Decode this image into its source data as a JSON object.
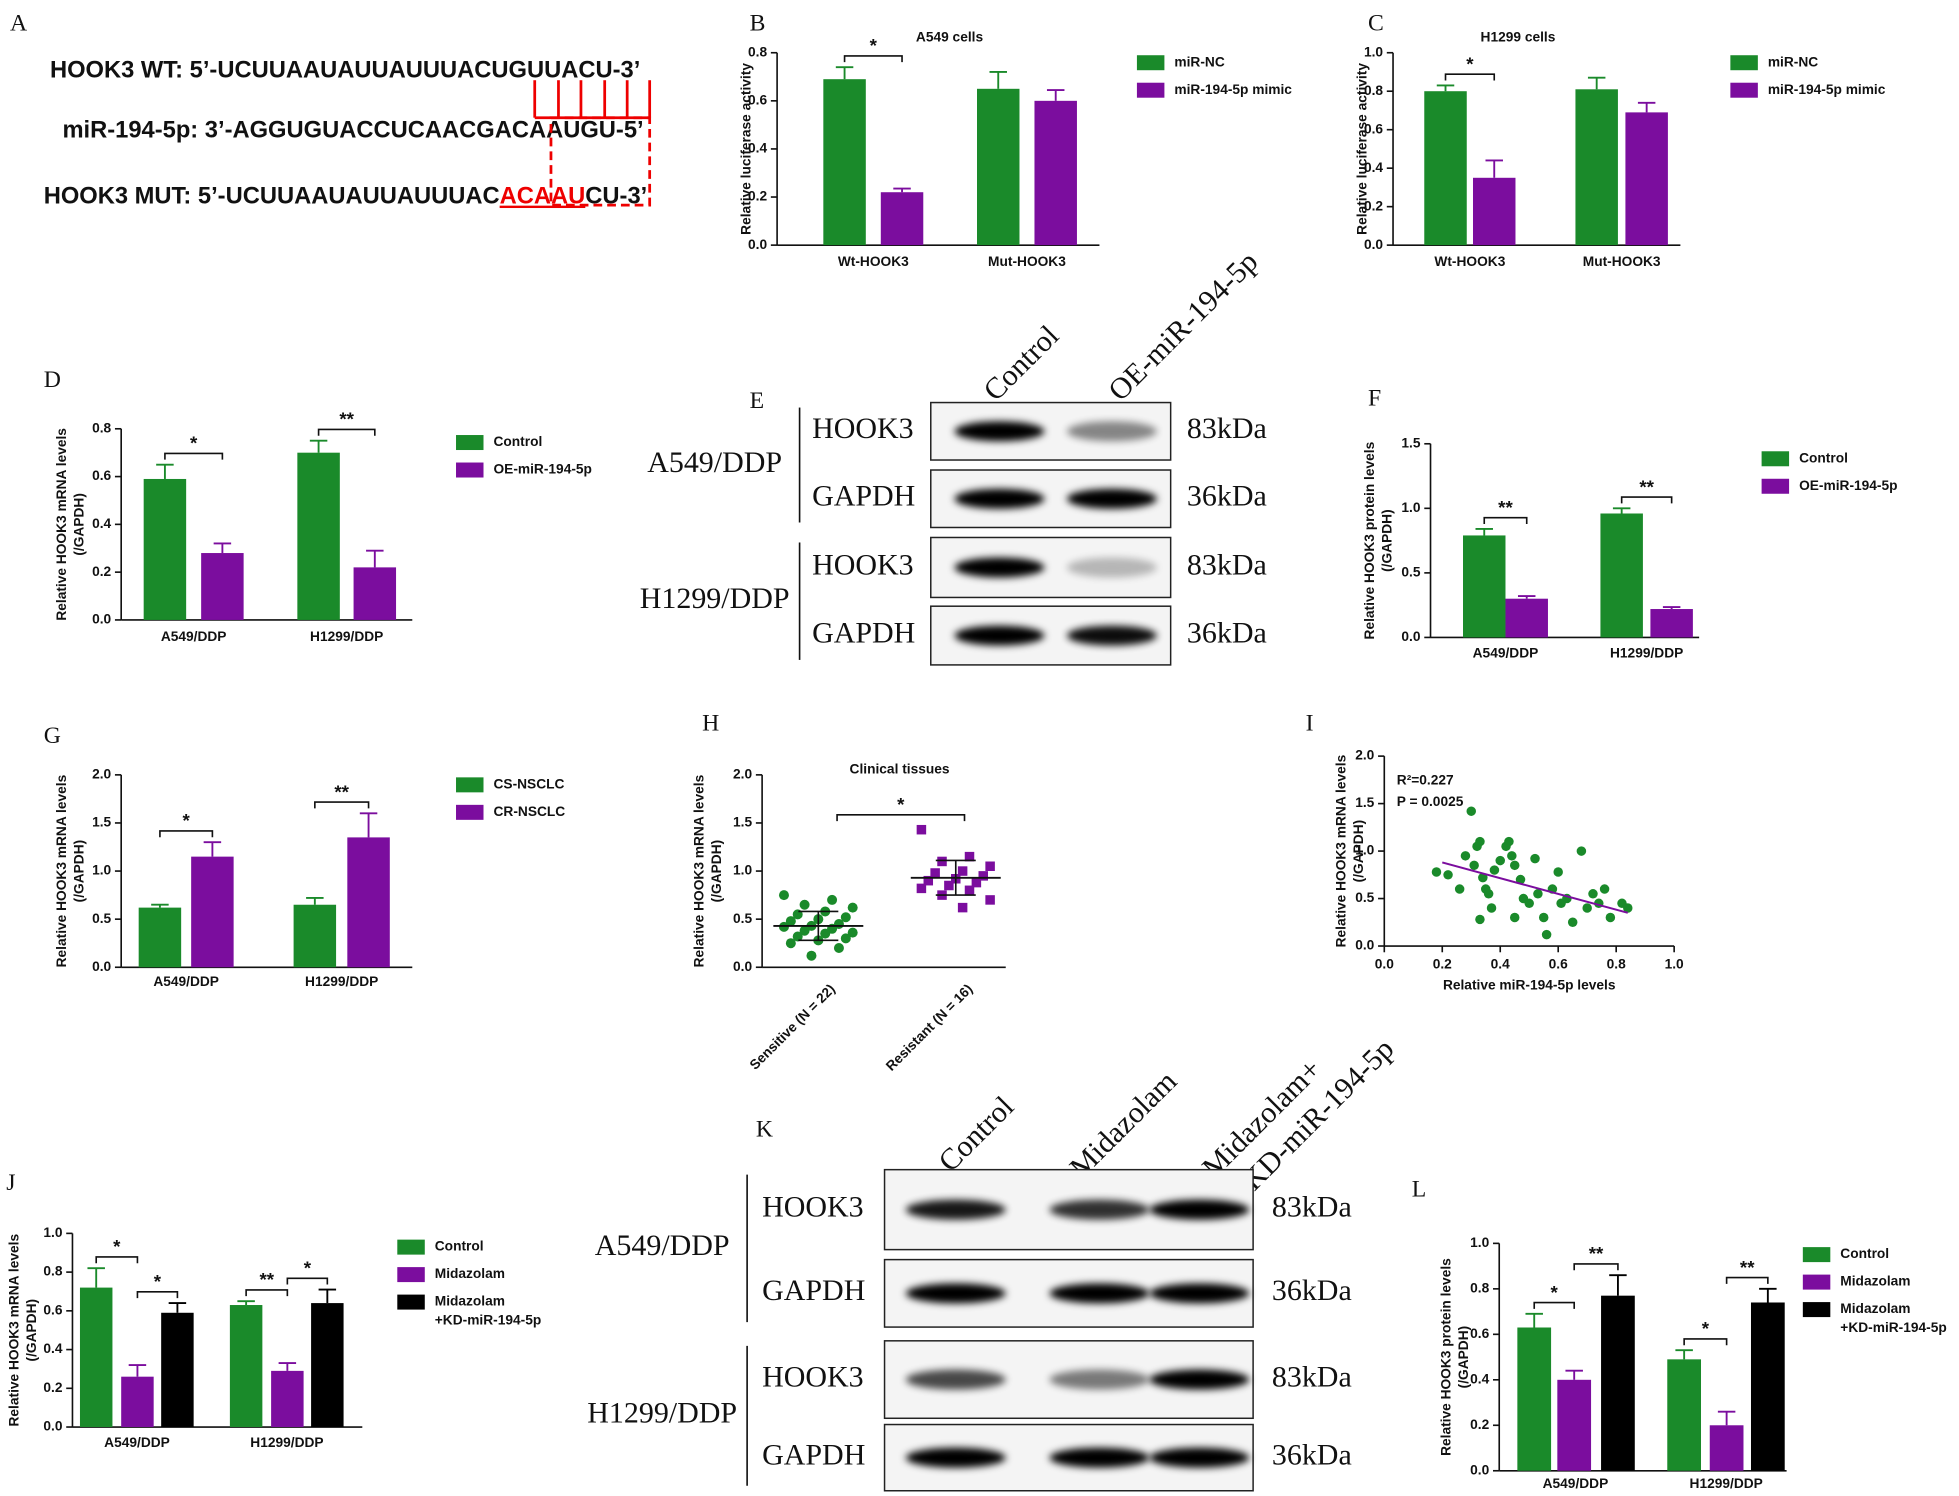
{
  "sequence": {
    "panel": "A",
    "lines": [
      "HOOK3 WT: 5’-UCUUAAUAUUAUUUACUGUUACU-3’",
      "miR-194-5p: 3’-AGGUGUACCUCAACGACAAUGU-5’"
    ],
    "mut": [
      "HOOK3 MUT: 5’-UCUUAAUAUUAUUUAC",
      "ACAAU",
      "CU-3’"
    ]
  },
  "blots": [
    {
      "panel": "E",
      "lanes": [
        "Control",
        "OE-miR-194-5p"
      ],
      "groups": [
        {
          "name": "A549/DDP",
          "rows": [
            {
              "protein": "HOOK3",
              "size": "83kDa"
            },
            {
              "protein": "GAPDH",
              "size": "36kDa"
            }
          ]
        },
        {
          "name": "H1299/DDP",
          "rows": [
            {
              "protein": "HOOK3",
              "size": "83kDa"
            },
            {
              "protein": "GAPDH",
              "size": "36kDa"
            }
          ]
        }
      ]
    },
    {
      "panel": "K",
      "lanes": [
        "Control",
        "Midazolam",
        [
          "Midazolam+",
          "KD-miR-194-5p"
        ]
      ],
      "groups": [
        {
          "name": "A549/DDP",
          "rows": [
            {
              "protein": "HOOK3",
              "size": "83kDa"
            },
            {
              "protein": "GAPDH",
              "size": "36kDa"
            }
          ]
        },
        {
          "name": "H1299/DDP",
          "rows": [
            {
              "protein": "HOOK3",
              "size": "83kDa"
            },
            {
              "protein": "GAPDH",
              "size": "36kDa"
            }
          ]
        }
      ]
    }
  ],
  "chart_data": [
    {
      "type": "bar",
      "panel": "B",
      "title": "A549 cells",
      "ylabel": "Relative luciferase activity",
      "categories": [
        "Wt-HOOK3",
        "Mut-HOOK3"
      ],
      "ylim": [
        0,
        0.8
      ],
      "yticks": [
        {
          "value": 0,
          "label": "0.0"
        },
        0.2,
        0.4,
        0.6,
        0.8
      ],
      "annotations": [
        "*"
      ],
      "series": [
        {
          "name": "miR-NC",
          "color": "#1a8a2a",
          "values": [
            0.69,
            0.65
          ],
          "errors": [
            0.05,
            0.07
          ]
        },
        {
          "name": "miR-194-5p mimic",
          "color": "#7b0d9e",
          "values": [
            0.22,
            0.6
          ],
          "errors": [
            0.015,
            0.045
          ]
        }
      ]
    },
    {
      "type": "bar",
      "panel": "C",
      "title": "H1299 cells",
      "ylabel": "Relative luciferase activity",
      "categories": [
        "Wt-HOOK3",
        "Mut-HOOK3"
      ],
      "ylim": [
        0,
        1
      ],
      "yticks": [
        {
          "value": 0,
          "label": "0.0"
        },
        0.2,
        0.4,
        0.6,
        0.8,
        {
          "value": 1,
          "label": "1.0"
        }
      ],
      "annotations": [
        "*"
      ],
      "series": [
        {
          "name": "miR-NC",
          "color": "#1a8a2a",
          "values": [
            0.8,
            0.81
          ],
          "errors": [
            0.03,
            0.06
          ]
        },
        {
          "name": "miR-194-5p mimic",
          "color": "#7b0d9e",
          "values": [
            0.35,
            0.69
          ],
          "errors": [
            0.09,
            0.05
          ]
        }
      ]
    },
    {
      "type": "bar",
      "panel": "D",
      "ylabel": [
        "Relative HOOK3 mRNA levels",
        "(/GAPDH)"
      ],
      "categories": [
        "A549/DDP",
        "H1299/DDP"
      ],
      "ylim": [
        0,
        0.8
      ],
      "yticks": [
        {
          "value": 0,
          "label": "0.0"
        },
        0.2,
        0.4,
        0.6,
        0.8
      ],
      "annotations": [
        "*",
        "**"
      ],
      "series": [
        {
          "name": "Control",
          "color": "#1a8a2a",
          "values": [
            0.59,
            0.7
          ],
          "errors": [
            0.06,
            0.05
          ]
        },
        {
          "name": "OE-miR-194-5p",
          "color": "#7b0d9e",
          "values": [
            0.28,
            0.22
          ],
          "errors": [
            0.04,
            0.07
          ]
        }
      ]
    },
    {
      "type": "bar",
      "panel": "F",
      "ylabel": [
        "Relative HOOK3 protein levels",
        "(/GAPDH)"
      ],
      "categories": [
        "A549/DDP",
        "H1299/DDP"
      ],
      "ylim": [
        0,
        1.5
      ],
      "yticks": [
        {
          "value": 0,
          "label": "0.0"
        },
        0.5,
        {
          "value": 1,
          "label": "1.0"
        },
        1.5
      ],
      "annotations": [
        "**",
        "**"
      ],
      "series": [
        {
          "name": "Control",
          "color": "#1a8a2a",
          "values": [
            0.79,
            0.96
          ],
          "errors": [
            0.05,
            0.04
          ]
        },
        {
          "name": "OE-miR-194-5p",
          "color": "#7b0d9e",
          "values": [
            0.3,
            0.22
          ],
          "errors": [
            0.02,
            0.015
          ]
        }
      ]
    },
    {
      "type": "bar",
      "panel": "G",
      "ylabel": [
        "Relative HOOK3 mRNA levels",
        "(/GAPDH)"
      ],
      "categories": [
        "A549/DDP",
        "H1299/DDP"
      ],
      "ylim": [
        0,
        2
      ],
      "yticks": [
        {
          "value": 0,
          "label": "0.0"
        },
        0.5,
        {
          "value": 1,
          "label": "1.0"
        },
        1.5,
        {
          "value": 2,
          "label": "2.0"
        }
      ],
      "annotations": [
        "*",
        "**"
      ],
      "series": [
        {
          "name": "CS-NSCLC",
          "color": "#1a8a2a",
          "values": [
            0.62,
            0.65
          ],
          "errors": [
            0.03,
            0.07
          ]
        },
        {
          "name": "CR-NSCLC",
          "color": "#7b0d9e",
          "values": [
            1.15,
            1.35
          ],
          "errors": [
            0.15,
            0.25
          ]
        }
      ]
    },
    {
      "type": "strip",
      "panel": "H",
      "title": "Clinical tissues",
      "ylabel": [
        "Relative HOOK3 mRNA levels",
        "(/GAPDH)"
      ],
      "categories": [
        "Sensitive (N = 22)",
        "Resistant (N = 16)"
      ],
      "ylim": [
        0,
        2
      ],
      "yticks": [
        {
          "value": 0,
          "label": "0.0"
        },
        0.5,
        {
          "value": 1,
          "label": "1.0"
        },
        1.5,
        {
          "value": 2,
          "label": "2.0"
        }
      ],
      "annotations": [
        "*"
      ],
      "series": [
        {
          "color": "#1a8a2a",
          "mean": 0.43,
          "sd": 0.15,
          "values": [
            0.75,
            0.7,
            0.65,
            0.62,
            0.58,
            0.55,
            0.52,
            0.5,
            0.48,
            0.45,
            0.43,
            0.42,
            0.4,
            0.38,
            0.36,
            0.35,
            0.32,
            0.3,
            0.28,
            0.25,
            0.2,
            0.12
          ]
        },
        {
          "color": "#7b0d9e",
          "mean": 0.93,
          "sd": 0.18,
          "values": [
            1.43,
            1.15,
            1.1,
            1.05,
            1.0,
            0.98,
            0.95,
            0.92,
            0.9,
            0.88,
            0.85,
            0.82,
            0.8,
            0.75,
            0.7,
            0.62
          ]
        }
      ]
    },
    {
      "type": "scatter",
      "panel": "I",
      "xlabel": "Relative miR-194-5p levels",
      "ylabel": [
        "Relative HOOK3 mRNA levels",
        "(/GAPDH)"
      ],
      "annotations": [
        "R²=0.227",
        "P = 0.0025"
      ],
      "xlim": [
        0,
        1
      ],
      "xticks": [
        {
          "value": 0,
          "label": "0.0"
        },
        0.2,
        0.4,
        0.6,
        0.8,
        {
          "value": 1,
          "label": "1.0"
        }
      ],
      "ylim": [
        0,
        2
      ],
      "yticks": [
        {
          "value": 0,
          "label": "0.0"
        },
        0.5,
        {
          "value": 1,
          "label": "1.0"
        },
        1.5,
        {
          "value": 2,
          "label": "2.0"
        }
      ],
      "series": [
        {
          "color": "#1a8a2a",
          "x": [
            0.18,
            0.22,
            0.26,
            0.28,
            0.3,
            0.31,
            0.32,
            0.33,
            0.33,
            0.34,
            0.35,
            0.36,
            0.37,
            0.38,
            0.4,
            0.42,
            0.43,
            0.44,
            0.45,
            0.45,
            0.47,
            0.48,
            0.5,
            0.52,
            0.53,
            0.55,
            0.56,
            0.58,
            0.6,
            0.61,
            0.63,
            0.65,
            0.68,
            0.7,
            0.72,
            0.74,
            0.76,
            0.78,
            0.82,
            0.84
          ],
          "y": [
            0.78,
            0.75,
            0.6,
            0.95,
            1.42,
            0.85,
            1.05,
            1.1,
            0.28,
            0.72,
            0.6,
            0.55,
            0.4,
            0.8,
            0.9,
            1.05,
            1.1,
            0.95,
            0.85,
            0.3,
            0.7,
            0.5,
            0.45,
            0.92,
            0.55,
            0.3,
            0.12,
            0.6,
            0.78,
            0.45,
            0.5,
            0.25,
            1.0,
            0.4,
            0.55,
            0.45,
            0.6,
            0.3,
            0.45,
            0.4
          ]
        }
      ],
      "trendline": {
        "color": "#7b0d9e",
        "x": [
          0.2,
          0.84
        ],
        "y": [
          0.88,
          0.35
        ]
      }
    },
    {
      "type": "bar",
      "panel": "J",
      "ylabel": [
        "Relative HOOK3 mRNA levels",
        "(/GAPDH)"
      ],
      "categories": [
        "A549/DDP",
        "H1299/DDP"
      ],
      "ylim": [
        0,
        1
      ],
      "yticks": [
        {
          "value": 0,
          "label": "0.0"
        },
        0.2,
        0.4,
        0.6,
        0.8,
        {
          "value": 1,
          "label": "1.0"
        }
      ],
      "annotations": [
        "*",
        "*",
        "**",
        "*"
      ],
      "series": [
        {
          "name": "Control",
          "color": "#1a8a2a",
          "values": [
            0.72,
            0.63
          ],
          "errors": [
            0.1,
            0.02
          ]
        },
        {
          "name": "Midazolam",
          "color": "#7b0d9e",
          "values": [
            0.26,
            0.29
          ],
          "errors": [
            0.06,
            0.04
          ]
        },
        {
          "name": [
            "Midazolam",
            "+KD-miR-194-5p"
          ],
          "color": "#000000",
          "values": [
            0.59,
            0.64
          ],
          "errors": [
            0.05,
            0.07
          ]
        }
      ]
    },
    {
      "type": "bar",
      "panel": "L",
      "ylabel": [
        "Relative HOOK3 protein levels",
        "(/GAPDH)"
      ],
      "categories": [
        "A549/DDP",
        "H1299/DDP"
      ],
      "ylim": [
        0,
        1
      ],
      "yticks": [
        {
          "value": 0,
          "label": "0.0"
        },
        0.2,
        0.4,
        0.6,
        0.8,
        {
          "value": 1,
          "label": "1.0"
        }
      ],
      "annotations": [
        "*",
        "**",
        "*",
        "**"
      ],
      "series": [
        {
          "name": "Control",
          "color": "#1a8a2a",
          "values": [
            0.63,
            0.49
          ],
          "errors": [
            0.06,
            0.04
          ]
        },
        {
          "name": "Midazolam",
          "color": "#7b0d9e",
          "values": [
            0.4,
            0.2
          ],
          "errors": [
            0.04,
            0.06
          ]
        },
        {
          "name": [
            "Midazolam",
            "+KD-miR-194-5p"
          ],
          "color": "#000000",
          "values": [
            0.77,
            0.74
          ],
          "errors": [
            0.09,
            0.06
          ]
        }
      ]
    }
  ]
}
